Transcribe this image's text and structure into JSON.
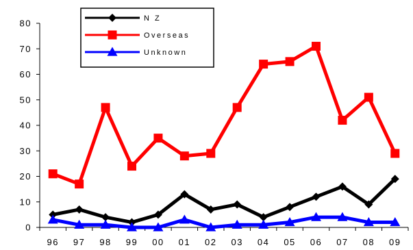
{
  "chart_data": {
    "type": "line",
    "title": "",
    "xlabel": "",
    "ylabel": "",
    "categories": [
      "96",
      "97",
      "98",
      "99",
      "00",
      "01",
      "02",
      "03",
      "04",
      "05",
      "06",
      "07",
      "08",
      "09"
    ],
    "ylim": [
      0,
      80
    ],
    "yticks": [
      0,
      10,
      20,
      30,
      40,
      50,
      60,
      70,
      80
    ],
    "grid": false,
    "legend_position": "top-left",
    "series": [
      {
        "name": "N Z",
        "color": "#000000",
        "marker": "diamond",
        "values": [
          5,
          7,
          4,
          2,
          5,
          13,
          7,
          9,
          4,
          8,
          12,
          16,
          9,
          19
        ]
      },
      {
        "name": "Overseas",
        "color": "#ff0000",
        "marker": "square",
        "values": [
          21,
          17,
          47,
          24,
          35,
          28,
          29,
          47,
          64,
          65,
          71,
          42,
          51,
          29
        ]
      },
      {
        "name": "Unknown",
        "color": "#0000ff",
        "marker": "triangle",
        "values": [
          3,
          1,
          1,
          0,
          0,
          3,
          0,
          1,
          1,
          2,
          4,
          4,
          2,
          2
        ]
      }
    ]
  }
}
